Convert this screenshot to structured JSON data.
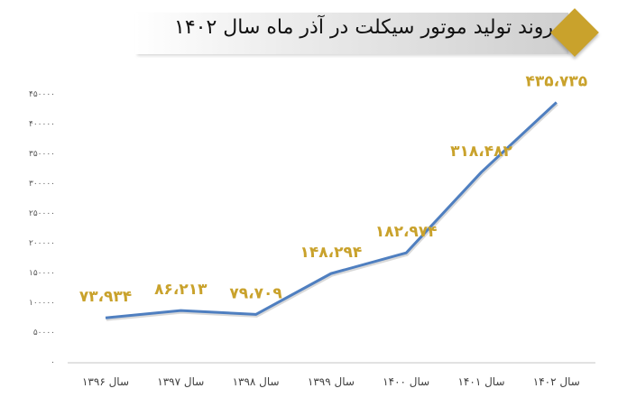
{
  "chart_data": {
    "type": "line",
    "title": "روند تولید موتور سیکلت در آذر ماه سال ۱۴۰۲",
    "categories": [
      "سال ۱۳۹۶",
      "سال ۱۳۹۷",
      "سال ۱۳۹۸",
      "سال ۱۳۹۹",
      "سال ۱۴۰۰",
      "سال ۱۴۰۱",
      "سال ۱۴۰۲"
    ],
    "values": [
      73934,
      86213,
      79709,
      148294,
      182974,
      318482,
      435735
    ],
    "data_labels": [
      "۷۳،۹۳۴",
      "۸۶،۲۱۳",
      "۷۹،۷۰۹",
      "۱۴۸،۲۹۴",
      "۱۸۲،۹۷۴",
      "۳۱۸،۴۸۲",
      "۴۳۵،۷۳۵"
    ],
    "ylim": [
      0,
      450000
    ],
    "y_ticks": [
      0,
      50000,
      100000,
      150000,
      200000,
      250000,
      300000,
      350000,
      400000,
      450000
    ],
    "y_tick_labels": [
      "۰",
      "۵۰۰۰۰",
      "۱۰۰۰۰۰",
      "۱۵۰۰۰۰",
      "۲۰۰۰۰۰",
      "۲۵۰۰۰۰",
      "۳۰۰۰۰۰",
      "۳۵۰۰۰۰",
      "۴۰۰۰۰۰",
      "۴۵۰۰۰۰"
    ],
    "xlabel": "",
    "ylabel": "",
    "grid": false,
    "legend": "none",
    "colors": {
      "line": "#4F7FC0",
      "data_label": "#C9A22C",
      "banner_diamond": "#C9A22C"
    }
  }
}
